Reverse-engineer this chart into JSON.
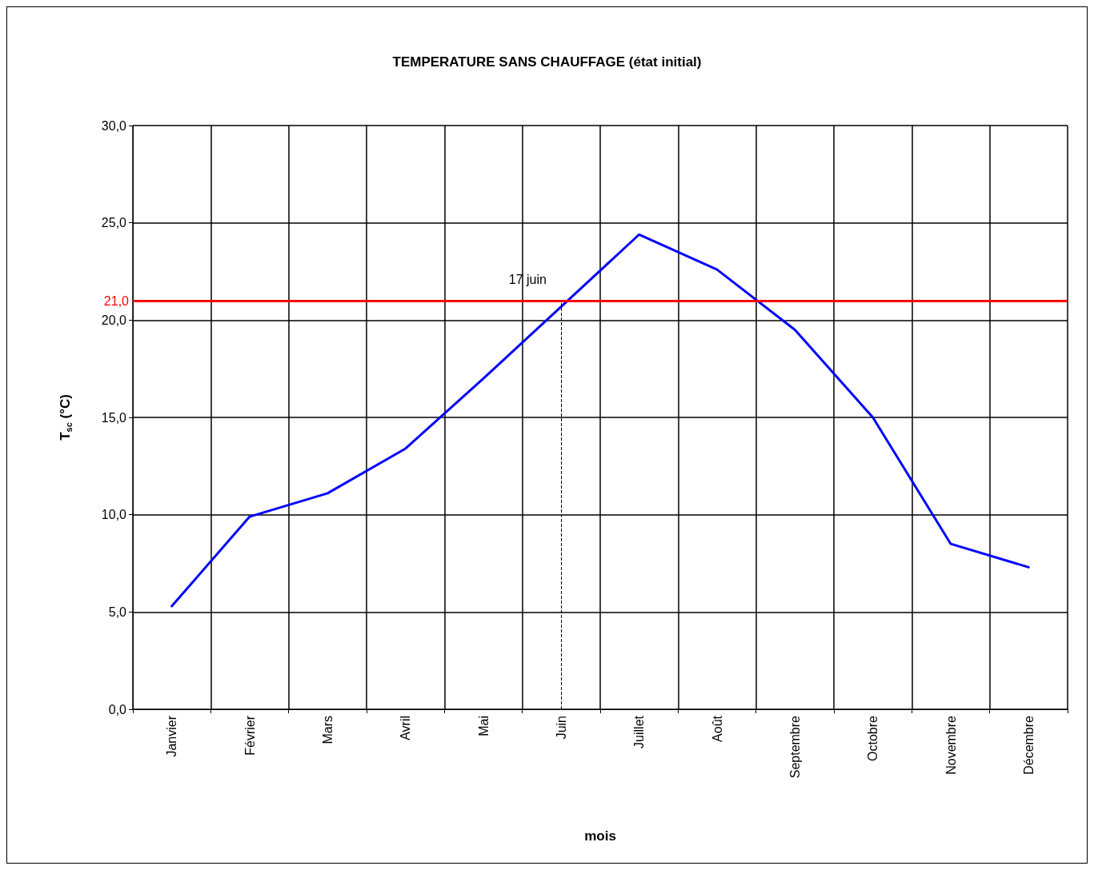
{
  "chart_data": {
    "type": "line",
    "title": "TEMPERATURE SANS CHAUFFAGE (état initial)",
    "xlabel": "mois",
    "ylabel": "T$_{sc}$ (°C)",
    "categories": [
      "Janvier",
      "Février",
      "Mars",
      "Avril",
      "Mai",
      "Juin",
      "Juillet",
      "Août",
      "Septembre",
      "Octobre",
      "Novembre",
      "Décembre"
    ],
    "series": [
      {
        "color": "#0000ff",
        "values": [
          5.3,
          9.9,
          11.1,
          13.4,
          17.0,
          20.7,
          24.4,
          22.6,
          19.5,
          15.0,
          8.5,
          7.3
        ]
      }
    ],
    "ylim": [
      0,
      30
    ],
    "yticks": [
      {
        "value": 0,
        "label": "0,0"
      },
      {
        "value": 5,
        "label": "5,0"
      },
      {
        "value": 10,
        "label": "10,0"
      },
      {
        "value": 15,
        "label": "15,0"
      },
      {
        "value": 20,
        "label": "20,0"
      },
      {
        "value": 25,
        "label": "25,0"
      },
      {
        "value": 30,
        "label": "30,0"
      }
    ],
    "ref_lines": [
      {
        "axis": "y",
        "value": 21,
        "label": "21,0",
        "color": "#ff0000",
        "line_style": "solid"
      },
      {
        "axis": "x",
        "value": "Juin",
        "label": "17 juin",
        "color": "#000000",
        "line_style": "dashed"
      }
    ],
    "grid": true,
    "marker": "none",
    "line_style": "solid"
  }
}
